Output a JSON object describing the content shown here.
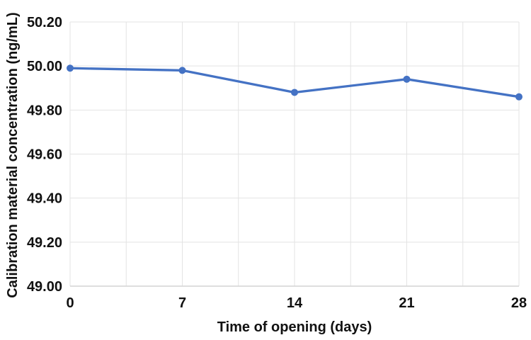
{
  "chart_data": {
    "type": "line",
    "title": "",
    "xlabel": "Time of opening (days)",
    "ylabel": "Calibration material concentration (ng/mL)",
    "x": [
      0,
      7,
      14,
      21,
      28
    ],
    "series": [
      {
        "name": "Calibration material concentration",
        "values": [
          49.99,
          49.98,
          49.88,
          49.94,
          49.86
        ]
      }
    ],
    "xlim": [
      0,
      28
    ],
    "ylim": [
      49.0,
      50.2
    ],
    "xtick_labels": [
      "0",
      "7",
      "14",
      "21",
      "28"
    ],
    "ytick_labels": [
      "49.00",
      "49.20",
      "49.40",
      "49.60",
      "49.80",
      "50.00",
      "50.20"
    ],
    "yticks": [
      49.0,
      49.2,
      49.4,
      49.6,
      49.8,
      50.0,
      50.2
    ],
    "x_gridline_step": 3.5,
    "grid": "on",
    "legend": "none",
    "colors": {
      "line": "#4472C4",
      "marker": "#4472C4",
      "gridline": "#e3e3e3",
      "axis_line": "#d4d4d4",
      "text": "#111111",
      "background": "#ffffff"
    }
  }
}
